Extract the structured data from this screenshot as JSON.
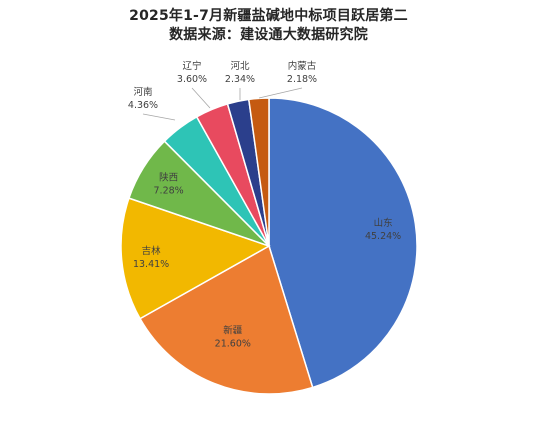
{
  "title": "2025年1-7月新疆盐碱地中标项目跃居第二",
  "subtitle": "数据来源：建设通大数据研究院",
  "chart_data": {
    "type": "pie",
    "title": "2025年1-7月新疆盐碱地中标项目跃居第二",
    "subtitle": "数据来源：建设通大数据研究院",
    "categories": [
      "山东",
      "新疆",
      "吉林",
      "陕西",
      "河南",
      "辽宁",
      "河北",
      "内蒙古"
    ],
    "values": [
      45.24,
      21.6,
      13.41,
      7.28,
      4.36,
      3.6,
      2.34,
      2.18
    ],
    "value_labels": [
      "45.24%",
      "21.60%",
      "13.41%",
      "7.28%",
      "4.36%",
      "3.60%",
      "2.34%",
      "2.18%"
    ],
    "colors": [
      "#4472C4",
      "#ED7D31",
      "#F2B800",
      "#70B84A",
      "#2EC4B6",
      "#E84A5F",
      "#2B3F8C",
      "#C55A11"
    ],
    "start": "12 o'clock",
    "direction": "clockwise",
    "legend": "none",
    "label_placement": [
      "inside",
      "inside",
      "inside",
      "inside",
      "outside",
      "outside",
      "outside",
      "outside"
    ]
  }
}
